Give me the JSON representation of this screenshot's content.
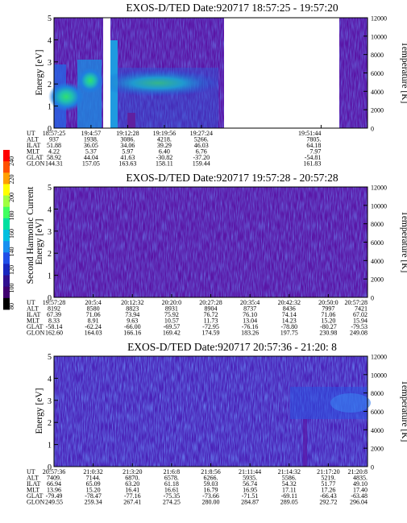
{
  "colors": {
    "background": "#5a15a6",
    "blue": "#2238d8",
    "cyan": "#1ea8d8",
    "green": "#20d060"
  },
  "colorbar": {
    "label": "Second Harmonic Current",
    "ticks": [
      "240",
      "220",
      "200",
      "180",
      "160",
      "140",
      "120",
      "100",
      "80"
    ],
    "palette": [
      "#ff0000",
      "#ff5000",
      "#ffa000",
      "#ffff00",
      "#a0ff40",
      "#40ff60",
      "#00e0a0",
      "#00c0e0",
      "#1890f0",
      "#2050e8",
      "#1828c0",
      "#301090",
      "#400070",
      "#000000"
    ]
  },
  "chart_data": [
    {
      "type": "heatmap",
      "title": "EXOS-D/TED   Date:920717   18:57:25 - 19:57:20",
      "ylabel": "Energy [eV]",
      "y2label": "Temperature [K]",
      "ylim": [
        0,
        5
      ],
      "y2lim": [
        0,
        12000
      ],
      "yticks": [
        "0",
        "1",
        "2",
        "3",
        "4",
        "5"
      ],
      "y2ticks": [
        "0",
        "2000",
        "4000",
        "6000",
        "8000",
        "10000",
        "12000"
      ],
      "data_gaps": [
        [
          0.21,
          0.235
        ],
        [
          0.6,
          0.87
        ]
      ],
      "table": {
        "labels": [
          "UT",
          "ALT",
          "ILAT",
          "MLT",
          "GLAT",
          "GLON"
        ],
        "columns": [
          [
            "18:57:25",
            "937",
            "51.88",
            "4.22",
            "58.92",
            "144.31"
          ],
          [
            "19:4:57",
            "1938.",
            "36.05",
            "5.37",
            "44.04",
            "157.05"
          ],
          [
            "19:12:28",
            "3086.",
            "34.06",
            "5.97",
            "41.63",
            "163.63"
          ],
          [
            "19:19:56",
            "4218.",
            "39.29",
            "6.40",
            "-30.82",
            "158.11"
          ],
          [
            "19:27:24",
            "5266.",
            "46.03",
            "6.76",
            "-37.20",
            "159.44"
          ],
          [
            "19:51:44",
            "7805.",
            "64.18",
            "7.97",
            "-54.81",
            "161.83"
          ]
        ]
      }
    },
    {
      "type": "heatmap",
      "title": "EXOS-D/TED   Date:920717   19:57:28 - 20:57:28",
      "ylabel": "Energy [eV]",
      "y2label": "Temperature [K]",
      "ylim": [
        0,
        5
      ],
      "y2lim": [
        0,
        12000
      ],
      "yticks": [
        "0",
        "1",
        "2",
        "3",
        "4",
        "5"
      ],
      "y2ticks": [
        "0",
        "2000",
        "4000",
        "6000",
        "8000",
        "10000",
        "12000"
      ],
      "table": {
        "labels": [
          "UT",
          "ALT",
          "ILAT",
          "MLT",
          "GLAT",
          "GLON"
        ],
        "columns": [
          [
            "19:57:28",
            "8192",
            "67.39",
            "8.33",
            "-58.14",
            "162.60"
          ],
          [
            "20:5:4",
            "8580",
            "71.06",
            "8.91",
            "-62.24",
            "164.03"
          ],
          [
            "20:12:32",
            "8823",
            "73.94",
            "9.63",
            "-66.00",
            "166.16"
          ],
          [
            "20:20:0",
            "8931",
            "75.92",
            "10.57",
            "-69.57",
            "169.42"
          ],
          [
            "20:27:28",
            "8904",
            "76.72",
            "11.73",
            "-72.95",
            "174.59"
          ],
          [
            "20:35:4",
            "8737",
            "76.10",
            "13.04",
            "-76.16",
            "183.26"
          ],
          [
            "20:42:32",
            "8436",
            "74.14",
            "14.23",
            "-78.80",
            "197.75"
          ],
          [
            "20:50:0",
            "7997",
            "71.06",
            "15.20",
            "-80.27",
            "230.98"
          ],
          [
            "20:57:28",
            "7421",
            "67.02",
            "15.94",
            "-79.53",
            "249.08"
          ]
        ]
      }
    },
    {
      "type": "heatmap",
      "title": "EXOS-D/TED   Date:920717   20:57:36 - 21:20: 8",
      "ylabel": "Energy [eV]",
      "y2label": "Temperature [K]",
      "ylim": [
        0,
        5
      ],
      "y2lim": [
        0,
        12000
      ],
      "yticks": [
        "0",
        "1",
        "2",
        "3",
        "4",
        "5"
      ],
      "y2ticks": [
        "0",
        "2000",
        "4000",
        "6000",
        "8000",
        "10000",
        "12000"
      ],
      "table": {
        "labels": [
          "UT",
          "ALT",
          "ILAT",
          "MLT",
          "GLAT",
          "GLON"
        ],
        "columns": [
          [
            "20:57:36",
            "7409.",
            "66.94",
            "13.96",
            "-79.49",
            "249.55"
          ],
          [
            "21:0:32",
            "7144.",
            "65.09",
            "15.20",
            "-78.47",
            "259.34"
          ],
          [
            "21:3:20",
            "6870.",
            "63.20",
            "16.41",
            "-77.16",
            "267.41"
          ],
          [
            "21:6:8",
            "6578.",
            "61.18",
            "16.61",
            "-75.35",
            "274.25"
          ],
          [
            "21:8:56",
            "6266.",
            "59.03",
            "16.79",
            "-73.66",
            "280.00"
          ],
          [
            "21:11:44",
            "5935.",
            "56.74",
            "16.95",
            "-71.51",
            "284.87"
          ],
          [
            "21:14:32",
            "5586.",
            "54.32",
            "17.11",
            "-69.11",
            "289.05"
          ],
          [
            "21:17:20",
            "5219.",
            "51.77",
            "17.26",
            "-66.43",
            "292.72"
          ],
          [
            "21:20:8",
            "4835.",
            "49.10",
            "17.40",
            "-63.48",
            "296.04"
          ]
        ]
      }
    }
  ]
}
